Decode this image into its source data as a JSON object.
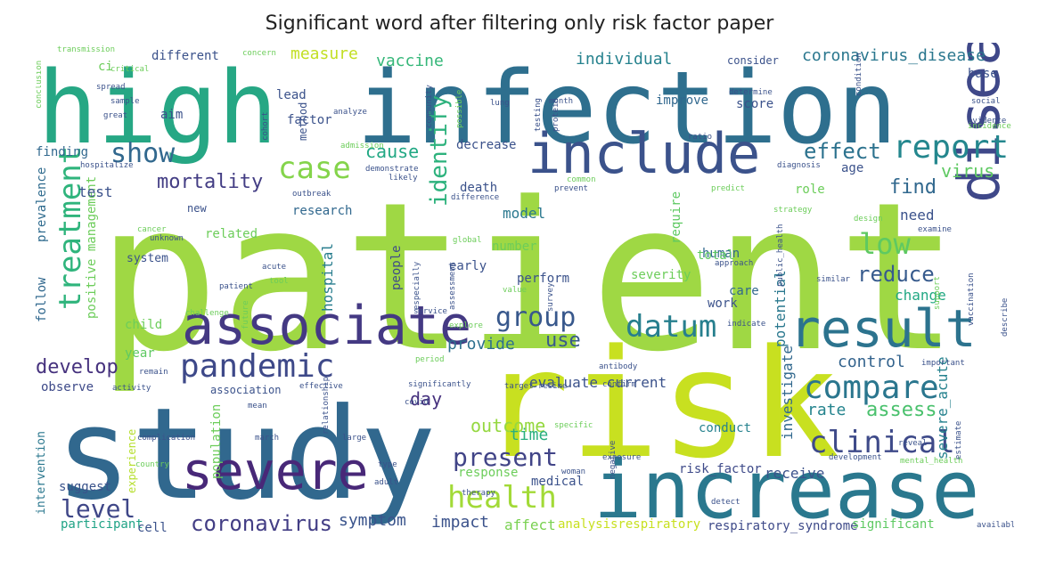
{
  "title": "Significant word after filtering only risk factor paper",
  "words": [
    {
      "id": "patient",
      "text": "patient",
      "color": "#9fd844"
    },
    {
      "id": "study",
      "text": "study",
      "color": "#31688e"
    },
    {
      "id": "risk",
      "text": "risk",
      "color": "#c8e020"
    },
    {
      "id": "high",
      "text": "high",
      "color": "#26a784"
    },
    {
      "id": "infection",
      "text": "infection",
      "color": "#2e6f8e"
    },
    {
      "id": "increase",
      "text": "increase",
      "color": "#2a788e"
    },
    {
      "id": "include",
      "text": "include",
      "color": "#3b528b"
    },
    {
      "id": "disease",
      "text": "disease",
      "color": "#3f4889"
    },
    {
      "id": "associate",
      "text": "associate",
      "color": "#443983"
    },
    {
      "id": "severe",
      "text": "severe",
      "color": "#482878"
    },
    {
      "id": "result",
      "text": "result",
      "color": "#2c738e"
    },
    {
      "id": "compare",
      "text": "compare",
      "color": "#2a768e"
    },
    {
      "id": "clinical",
      "text": "clinical",
      "color": "#3e4a89"
    },
    {
      "id": "pandemic",
      "text": "pandemic",
      "color": "#3e4989"
    },
    {
      "id": "case",
      "text": "case",
      "color": "#84d44b"
    },
    {
      "id": "report",
      "text": "report",
      "color": "#24878e"
    },
    {
      "id": "treatment",
      "text": "treatment",
      "color": "#2fb47c"
    },
    {
      "id": "datum",
      "text": "datum",
      "color": "#277f8e"
    },
    {
      "id": "health",
      "text": "health",
      "color": "#a2da37"
    },
    {
      "id": "group",
      "text": "group",
      "color": "#38588c"
    },
    {
      "id": "low",
      "text": "low",
      "color": "#5ec962"
    },
    {
      "id": "show",
      "text": "show",
      "color": "#31688e"
    },
    {
      "id": "identify",
      "text": "identify",
      "color": "#2db27d"
    },
    {
      "id": "present",
      "text": "present",
      "color": "#414487"
    },
    {
      "id": "level",
      "text": "level",
      "color": "#3f4788"
    },
    {
      "id": "develop",
      "text": "develop",
      "color": "#46327e"
    },
    {
      "id": "coronavirus",
      "text": "coronavirus",
      "color": "#433e85"
    },
    {
      "id": "mortality",
      "text": "mortality",
      "color": "#433d84"
    },
    {
      "id": "effect",
      "text": "effect",
      "color": "#2c728e"
    },
    {
      "id": "reduce",
      "text": "reduce",
      "color": "#375b8d"
    },
    {
      "id": "find",
      "text": "find",
      "color": "#31688e"
    },
    {
      "id": "virus",
      "text": "virus",
      "color": "#5ec962"
    },
    {
      "id": "assess",
      "text": "assess",
      "color": "#4ac16d"
    },
    {
      "id": "outcome",
      "text": "outcome",
      "color": "#95d840"
    },
    {
      "id": "control",
      "text": "control",
      "color": "#33638d"
    },
    {
      "id": "rate",
      "text": "rate",
      "color": "#25848e"
    },
    {
      "id": "time",
      "text": "time",
      "color": "#29af7f"
    },
    {
      "id": "cause",
      "text": "cause",
      "color": "#22a884"
    },
    {
      "id": "use",
      "text": "use",
      "color": "#38598c"
    },
    {
      "id": "day",
      "text": "day",
      "color": "#46317e"
    },
    {
      "id": "provide",
      "text": "provide",
      "color": "#2d708e"
    },
    {
      "id": "measure",
      "text": "measure",
      "color": "#c2df23"
    },
    {
      "id": "vaccine",
      "text": "vaccine",
      "color": "#35b779"
    },
    {
      "id": "individual",
      "text": "individual",
      "color": "#26828e"
    },
    {
      "id": "coronavirus_disease",
      "text": "coronavirus_disease",
      "color": "#2a778e"
    },
    {
      "id": "symptom",
      "text": "symptom",
      "color": "#3a548c"
    },
    {
      "id": "impact",
      "text": "impact",
      "color": "#3b528b"
    },
    {
      "id": "affect",
      "text": "affect",
      "color": "#7ad151"
    },
    {
      "id": "analysisrespiratory",
      "text": "analysisrespiratory",
      "color": "#c8e020"
    },
    {
      "id": "respiratory_syndrome",
      "text": "respiratory_syndrome",
      "color": "#3e4a89"
    },
    {
      "id": "significant",
      "text": "significant",
      "color": "#5ec962"
    },
    {
      "id": "participant",
      "text": "participant",
      "color": "#20a386"
    },
    {
      "id": "cell",
      "text": "cell",
      "color": "#3b528b"
    },
    {
      "id": "suggest",
      "text": "suggest",
      "color": "#3a538b"
    },
    {
      "id": "intervention",
      "text": "intervention",
      "color": "#2a778e"
    },
    {
      "id": "positive_management",
      "text": "positive management",
      "color": "#6ccd5a"
    },
    {
      "id": "prevalence",
      "text": "prevalence",
      "color": "#2f6b8e"
    },
    {
      "id": "follow",
      "text": "follow",
      "color": "#31688e"
    },
    {
      "id": "test",
      "text": "test",
      "color": "#3b528b"
    },
    {
      "id": "finding",
      "text": "finding",
      "color": "#31688e"
    },
    {
      "id": "observe",
      "text": "observe",
      "color": "#3e4a89"
    },
    {
      "id": "year",
      "text": "year",
      "color": "#5ec962"
    },
    {
      "id": "child",
      "text": "child",
      "color": "#6ccd5a"
    },
    {
      "id": "system",
      "text": "system",
      "color": "#3b528b"
    },
    {
      "id": "related",
      "text": "related",
      "color": "#6ccd5a"
    },
    {
      "id": "research",
      "text": "research",
      "color": "#31688e"
    },
    {
      "id": "hospital",
      "text": "hospital",
      "color": "#287d8e"
    },
    {
      "id": "people",
      "text": "people",
      "color": "#3e4a89"
    },
    {
      "id": "early",
      "text": "early",
      "color": "#3b528b"
    },
    {
      "id": "number",
      "text": "number",
      "color": "#6ccd5a"
    },
    {
      "id": "perform",
      "text": "perform",
      "color": "#3b528b"
    },
    {
      "id": "model",
      "text": "model",
      "color": "#2a788e"
    },
    {
      "id": "evaluate_current",
      "text": "evaluate current",
      "color": "#3b528b"
    },
    {
      "id": "severity",
      "text": "severity",
      "color": "#6ccd5a"
    },
    {
      "id": "require",
      "text": "require",
      "color": "#5ec962"
    },
    {
      "id": "human",
      "text": "human",
      "color": "#31688e"
    },
    {
      "id": "potential",
      "text": "potential",
      "color": "#2a788e"
    },
    {
      "id": "investigate",
      "text": "investigate",
      "color": "#31688e"
    },
    {
      "id": "work",
      "text": "work",
      "color": "#3b528b"
    },
    {
      "id": "care",
      "text": "care",
      "color": "#31688e"
    },
    {
      "id": "change",
      "text": "change",
      "color": "#22a884"
    },
    {
      "id": "need",
      "text": "need",
      "color": "#3b528b"
    },
    {
      "id": "severe_acute",
      "text": "severe_acute",
      "color": "#26828e"
    },
    {
      "id": "receive",
      "text": "receive",
      "color": "#3b528b"
    },
    {
      "id": "risk_factor",
      "text": "risk_factor",
      "color": "#3e4a89"
    },
    {
      "id": "conduct",
      "text": "conduct",
      "color": "#26828e"
    },
    {
      "id": "medical",
      "text": "medical",
      "color": "#3b528b"
    },
    {
      "id": "population",
      "text": "population",
      "color": "#6ccd5a"
    },
    {
      "id": "experience",
      "text": "experience",
      "color": "#b5de2b"
    },
    {
      "id": "aim",
      "text": "aim",
      "color": "#3b528b"
    },
    {
      "id": "ci",
      "text": "ci",
      "color": "#6ccd5a"
    },
    {
      "id": "different",
      "text": "different",
      "color": "#3b528b"
    },
    {
      "id": "lead",
      "text": "lead",
      "color": "#3b528b"
    },
    {
      "id": "factor",
      "text": "factor",
      "color": "#3b528b"
    },
    {
      "id": "method",
      "text": "method",
      "color": "#3b528b"
    },
    {
      "id": "base",
      "text": "base",
      "color": "#3b528b"
    },
    {
      "id": "consider",
      "text": "consider",
      "color": "#3b528b"
    },
    {
      "id": "improve",
      "text": "improve",
      "color": "#31688e"
    },
    {
      "id": "score",
      "text": "score",
      "color": "#3b528b"
    },
    {
      "id": "decrease",
      "text": "decrease",
      "color": "#3b528b"
    },
    {
      "id": "death",
      "text": "death",
      "color": "#3b528b"
    },
    {
      "id": "total",
      "text": "total",
      "color": "#5ec962"
    },
    {
      "id": "role",
      "text": "role",
      "color": "#6ccd5a"
    },
    {
      "id": "age",
      "text": "age",
      "color": "#3b528b"
    },
    {
      "id": "association",
      "text": "association",
      "color": "#3b528b"
    },
    {
      "id": "new",
      "text": "new",
      "color": "#3b528b"
    },
    {
      "id": "response",
      "text": "response",
      "color": "#6ccd5a"
    },
    {
      "id": "transmission",
      "text": "transmission",
      "color": "#6ccd5a"
    },
    {
      "id": "critical",
      "text": "critical",
      "color": "#6ccd5a"
    },
    {
      "id": "spread",
      "text": "spread",
      "color": "#3b528b"
    },
    {
      "id": "sample",
      "text": "sample",
      "color": "#3b528b"
    },
    {
      "id": "great",
      "text": "great",
      "color": "#3b528b"
    },
    {
      "id": "conclusion",
      "text": "conclusion",
      "color": "#6ccd5a"
    },
    {
      "id": "hospitalize",
      "text": "hospitalize",
      "color": "#3b528b"
    },
    {
      "id": "analyze",
      "text": "analyze",
      "color": "#3b528b"
    },
    {
      "id": "community",
      "text": "community",
      "color": "#3b528b"
    },
    {
      "id": "possible",
      "text": "possible",
      "color": "#6ccd5a"
    },
    {
      "id": "lung",
      "text": "lung",
      "color": "#3b528b"
    },
    {
      "id": "testing",
      "text": "testing",
      "color": "#3b528b"
    },
    {
      "id": "protein",
      "text": "protein",
      "color": "#3b528b"
    },
    {
      "id": "condition",
      "text": "condition",
      "color": "#3b528b"
    },
    {
      "id": "social",
      "text": "social",
      "color": "#3b528b"
    },
    {
      "id": "evidence",
      "text": "evidence",
      "color": "#3b528b"
    },
    {
      "id": "determine",
      "text": "determine",
      "color": "#3b528b"
    },
    {
      "id": "ratio",
      "text": "ratio",
      "color": "#3b528b"
    },
    {
      "id": "diagnosis",
      "text": "diagnosis",
      "color": "#3b528b"
    },
    {
      "id": "predict",
      "text": "predict",
      "color": "#6ccd5a"
    },
    {
      "id": "strategy",
      "text": "strategy",
      "color": "#6ccd5a"
    },
    {
      "id": "design",
      "text": "design",
      "color": "#6ccd5a"
    },
    {
      "id": "demonstrate",
      "text": "demonstrate",
      "color": "#3b528b"
    },
    {
      "id": "outbreak",
      "text": "outbreak",
      "color": "#3b528b"
    },
    {
      "id": "difference",
      "text": "difference",
      "color": "#3b528b"
    },
    {
      "id": "global",
      "text": "global",
      "color": "#6ccd5a"
    },
    {
      "id": "value",
      "text": "value",
      "color": "#6ccd5a"
    },
    {
      "id": "especially",
      "text": "especially",
      "color": "#3b528b"
    },
    {
      "id": "assessment",
      "text": "assessment",
      "color": "#3b528b"
    },
    {
      "id": "service",
      "text": "service",
      "color": "#3b528b"
    },
    {
      "id": "explore",
      "text": "explore",
      "color": "#6ccd5a"
    },
    {
      "id": "approach",
      "text": "approach",
      "color": "#3b528b"
    },
    {
      "id": "public_health",
      "text": "public_health",
      "color": "#3b528b"
    },
    {
      "id": "similar",
      "text": "similar",
      "color": "#3b528b"
    },
    {
      "id": "support",
      "text": "support",
      "color": "#6ccd5a"
    },
    {
      "id": "vaccination",
      "text": "vaccination",
      "color": "#3b528b"
    },
    {
      "id": "indicate",
      "text": "indicate",
      "color": "#3b528b"
    },
    {
      "id": "describe",
      "text": "describe",
      "color": "#3b528b"
    },
    {
      "id": "important",
      "text": "important",
      "color": "#3b528b"
    },
    {
      "id": "antibody",
      "text": "antibody",
      "color": "#3b528b"
    },
    {
      "id": "confirm",
      "text": "confirm",
      "color": "#3b528b"
    },
    {
      "id": "target_resime",
      "text": "target resime",
      "color": "#3b528b"
    },
    {
      "id": "specific",
      "text": "specific",
      "color": "#6ccd5a"
    },
    {
      "id": "exposure",
      "text": "exposure",
      "color": "#3b528b"
    },
    {
      "id": "woman",
      "text": "woman",
      "color": "#3b528b"
    },
    {
      "id": "negative",
      "text": "negative",
      "color": "#3b528b"
    },
    {
      "id": "detect",
      "text": "detect",
      "color": "#3b528b"
    },
    {
      "id": "development",
      "text": "development",
      "color": "#3b528b"
    },
    {
      "id": "mental_health",
      "text": "mental_health",
      "color": "#6ccd5a"
    },
    {
      "id": "available",
      "text": "available",
      "color": "#3b528b"
    },
    {
      "id": "estimate",
      "text": "estimate",
      "color": "#3b528b"
    },
    {
      "id": "reveal",
      "text": "reveal",
      "color": "#3b528b"
    },
    {
      "id": "covid",
      "text": "covid",
      "color": "#3b528b"
    },
    {
      "id": "significantly",
      "text": "significantly",
      "color": "#3b528b"
    },
    {
      "id": "effective",
      "text": "effective",
      "color": "#3b528b"
    },
    {
      "id": "challenge",
      "text": "challenge",
      "color": "#6ccd5a"
    },
    {
      "id": "future",
      "text": "future",
      "color": "#6ccd5a"
    },
    {
      "id": "remain",
      "text": "remain",
      "color": "#3b528b"
    },
    {
      "id": "activity",
      "text": "activity",
      "color": "#3b528b"
    },
    {
      "id": "mean",
      "text": "mean",
      "color": "#3b528b"
    },
    {
      "id": "large",
      "text": "large",
      "color": "#3b528b"
    },
    {
      "id": "relationship",
      "text": "relationship",
      "color": "#3b528b"
    },
    {
      "id": "type",
      "text": "type",
      "color": "#3b528b"
    },
    {
      "id": "therapy",
      "text": "therapy",
      "color": "#3b528b"
    },
    {
      "id": "adult",
      "text": "adult",
      "color": "#3b528b"
    },
    {
      "id": "country",
      "text": "country",
      "color": "#6ccd5a"
    },
    {
      "id": "complication",
      "text": "complication",
      "color": "#3b528b"
    },
    {
      "id": "admission",
      "text": "admission",
      "color": "#6ccd5a"
    },
    {
      "id": "cohort",
      "text": "cohort",
      "color": "#3b528b"
    },
    {
      "id": "likely",
      "text": "likely",
      "color": "#3b528b"
    },
    {
      "id": "prevent",
      "text": "prevent",
      "color": "#3b528b"
    },
    {
      "id": "cancer",
      "text": "cancer",
      "color": "#6ccd5a"
    },
    {
      "id": "unknown",
      "text": "unknown",
      "color": "#3b528b"
    },
    {
      "id": "month",
      "text": "month",
      "color": "#3b528b"
    },
    {
      "id": "concern",
      "text": "concern",
      "color": "#6ccd5a"
    },
    {
      "id": "examine",
      "text": "examine",
      "color": "#3b528b"
    },
    {
      "id": "incidence",
      "text": "incidence",
      "color": "#6ccd5a"
    },
    {
      "id": "acute",
      "text": "acute",
      "color": "#3b528b"
    },
    {
      "id": "tool",
      "text": "tool",
      "color": "#6ccd5a"
    },
    {
      "id": "common",
      "text": "common",
      "color": "#6ccd5a"
    },
    {
      "id": "period",
      "text": "period",
      "color": "#6ccd5a"
    },
    {
      "id": "survey",
      "text": "survey",
      "color": "#3b528b"
    },
    {
      "id": "march",
      "text": "march",
      "color": "#3b528b"
    },
    {
      "id": "patient_small",
      "text": "patient",
      "color": "#3b528b"
    }
  ]
}
